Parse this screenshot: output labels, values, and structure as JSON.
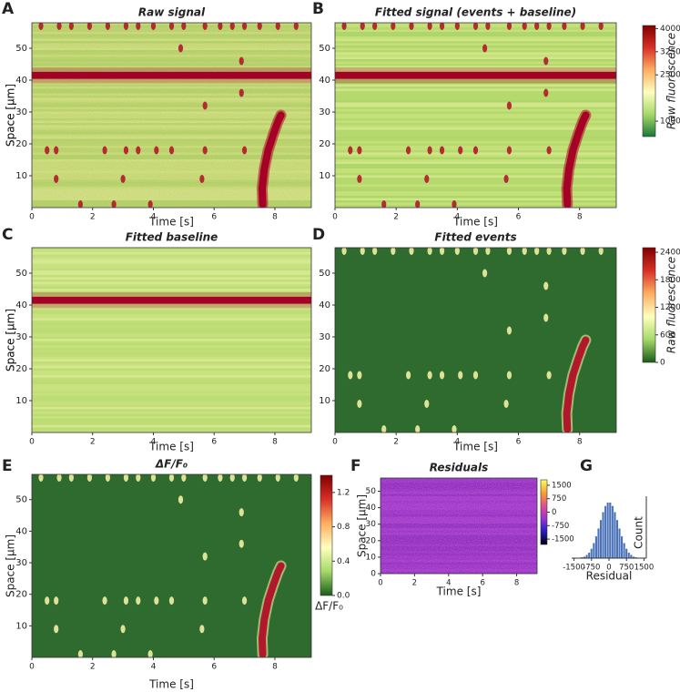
{
  "chart_data": [
    {
      "type": "heatmap",
      "panel": "A",
      "title": "Raw signal",
      "xlabel": "Time [s]",
      "ylabel": "Space [µm]",
      "xlim": [
        0,
        9.2
      ],
      "ylim": [
        0,
        58
      ],
      "xticks": [
        0,
        2,
        4,
        6,
        8
      ],
      "yticks": [
        10,
        20,
        30,
        40,
        50
      ],
      "noise": true,
      "colors": {
        "background": [
          "#b5d96e",
          "#cfe584",
          "#a9d468",
          "#dcec94"
        ],
        "band": "#a50026",
        "event": "#b2182b",
        "wave": "#a50026"
      },
      "band": 41.5,
      "events": [
        [
          0.3,
          57
        ],
        [
          0.9,
          57
        ],
        [
          1.3,
          57
        ],
        [
          1.9,
          57
        ],
        [
          2.5,
          57
        ],
        [
          3.1,
          57
        ],
        [
          3.5,
          57
        ],
        [
          4.0,
          57
        ],
        [
          4.6,
          57
        ],
        [
          5.0,
          57
        ],
        [
          5.7,
          57
        ],
        [
          6.2,
          57
        ],
        [
          6.6,
          57
        ],
        [
          7.0,
          57
        ],
        [
          7.5,
          57
        ],
        [
          8.1,
          57
        ],
        [
          8.7,
          57
        ],
        [
          0.5,
          18
        ],
        [
          0.8,
          18
        ],
        [
          2.4,
          18
        ],
        [
          3.1,
          18
        ],
        [
          3.5,
          18
        ],
        [
          4.1,
          18
        ],
        [
          4.6,
          18
        ],
        [
          5.7,
          18
        ],
        [
          7.0,
          18
        ],
        [
          4.9,
          50
        ],
        [
          6.9,
          46
        ],
        [
          5.7,
          32
        ],
        [
          6.9,
          36
        ],
        [
          0.8,
          9
        ],
        [
          3.0,
          9
        ],
        [
          5.6,
          9
        ],
        [
          1.6,
          1
        ],
        [
          2.7,
          1
        ],
        [
          3.9,
          1
        ]
      ],
      "wave": {
        "x": [
          7.6,
          7.58,
          7.65,
          7.78,
          7.95,
          8.1,
          8.2
        ],
        "y": [
          1,
          6,
          12,
          18,
          23,
          27,
          29
        ]
      }
    },
    {
      "type": "heatmap",
      "panel": "B",
      "title": "Fitted signal (events + baseline)",
      "xlabel": "Time [s]",
      "ylabel": "Space [µm]",
      "xlim": [
        0,
        9.2
      ],
      "ylim": [
        0,
        58
      ],
      "xticks": [
        0,
        2,
        4,
        6,
        8
      ],
      "yticks": [
        10,
        20,
        30,
        40,
        50
      ],
      "noise": false,
      "colors": {
        "background": [
          "#b5d96e",
          "#cfe584",
          "#a9d468",
          "#e6f1a0"
        ],
        "band": "#a50026",
        "event": "#b2182b",
        "wave": "#a50026"
      },
      "band": 41.5,
      "events": [
        [
          0.3,
          57
        ],
        [
          0.9,
          57
        ],
        [
          1.3,
          57
        ],
        [
          1.9,
          57
        ],
        [
          2.5,
          57
        ],
        [
          3.1,
          57
        ],
        [
          3.5,
          57
        ],
        [
          4.0,
          57
        ],
        [
          4.6,
          57
        ],
        [
          5.0,
          57
        ],
        [
          5.7,
          57
        ],
        [
          6.2,
          57
        ],
        [
          6.6,
          57
        ],
        [
          7.0,
          57
        ],
        [
          7.5,
          57
        ],
        [
          8.1,
          57
        ],
        [
          8.7,
          57
        ],
        [
          0.5,
          18
        ],
        [
          0.8,
          18
        ],
        [
          2.4,
          18
        ],
        [
          3.1,
          18
        ],
        [
          3.5,
          18
        ],
        [
          4.1,
          18
        ],
        [
          4.6,
          18
        ],
        [
          5.7,
          18
        ],
        [
          7.0,
          18
        ],
        [
          4.9,
          50
        ],
        [
          6.9,
          46
        ],
        [
          5.7,
          32
        ],
        [
          6.9,
          36
        ],
        [
          0.8,
          9
        ],
        [
          3.0,
          9
        ],
        [
          5.6,
          9
        ],
        [
          1.6,
          1
        ],
        [
          2.7,
          1
        ],
        [
          3.9,
          1
        ]
      ],
      "wave": {
        "x": [
          7.6,
          7.58,
          7.65,
          7.78,
          7.95,
          8.1,
          8.2
        ],
        "y": [
          1,
          6,
          12,
          18,
          23,
          27,
          29
        ]
      },
      "colorbar": {
        "label": "Raw fluorescence",
        "lim": [
          500,
          4100
        ],
        "ticks": [
          1000,
          2500,
          3250,
          4000
        ],
        "colors": [
          "#1a7837",
          "#a6d96a",
          "#ffffbf",
          "#fdae61",
          "#d73027",
          "#7f0000"
        ]
      }
    },
    {
      "type": "heatmap",
      "panel": "C",
      "title": "Fitted baseline",
      "xlabel": "Time [s]",
      "ylabel": "Space [µm]",
      "xlim": [
        0,
        9.2
      ],
      "ylim": [
        0,
        58
      ],
      "xticks": [
        0,
        2,
        4,
        6,
        8
      ],
      "yticks": [
        10,
        20,
        30,
        40,
        50
      ],
      "noise": false,
      "colors": {
        "background": [
          "#bcdc74",
          "#d2e788",
          "#c4e07c",
          "#e9f3a6"
        ],
        "band": "#a50026",
        "event": "#b2182b",
        "wave": "#a50026"
      },
      "band": 41.5
    },
    {
      "type": "heatmap",
      "panel": "D",
      "title": "Fitted events",
      "xlabel": "Time [s]",
      "ylabel": "Space [µm]",
      "xlim": [
        0,
        9.2
      ],
      "ylim": [
        0,
        58
      ],
      "xticks": [
        0,
        2,
        4,
        6,
        8
      ],
      "yticks": [
        10,
        20,
        30,
        40,
        50
      ],
      "noise": false,
      "colors": {
        "background": [
          "#2f6b2f"
        ],
        "event": "#f2efa3",
        "wave": "#b2182b"
      },
      "events": [
        [
          0.3,
          57
        ],
        [
          0.9,
          57
        ],
        [
          1.3,
          57
        ],
        [
          1.9,
          57
        ],
        [
          2.5,
          57
        ],
        [
          3.1,
          57
        ],
        [
          3.5,
          57
        ],
        [
          4.0,
          57
        ],
        [
          4.6,
          57
        ],
        [
          5.0,
          57
        ],
        [
          5.7,
          57
        ],
        [
          6.2,
          57
        ],
        [
          6.6,
          57
        ],
        [
          7.0,
          57
        ],
        [
          7.5,
          57
        ],
        [
          8.1,
          57
        ],
        [
          8.7,
          57
        ],
        [
          0.5,
          18
        ],
        [
          0.8,
          18
        ],
        [
          2.4,
          18
        ],
        [
          3.1,
          18
        ],
        [
          3.5,
          18
        ],
        [
          4.1,
          18
        ],
        [
          4.6,
          18
        ],
        [
          5.7,
          18
        ],
        [
          7.0,
          18
        ],
        [
          4.9,
          50
        ],
        [
          6.9,
          46
        ],
        [
          5.7,
          32
        ],
        [
          6.9,
          36
        ],
        [
          0.8,
          9
        ],
        [
          3.0,
          9
        ],
        [
          5.6,
          9
        ],
        [
          1.6,
          1
        ],
        [
          2.7,
          1
        ],
        [
          3.9,
          1
        ]
      ],
      "wave": {
        "x": [
          7.6,
          7.58,
          7.65,
          7.78,
          7.95,
          8.1,
          8.2
        ],
        "y": [
          1,
          6,
          12,
          18,
          23,
          27,
          29
        ]
      },
      "colorbar": {
        "label": "Raw fluorescence",
        "lim": [
          0,
          2500
        ],
        "ticks": [
          0,
          600,
          1200,
          1800,
          2400
        ],
        "colors": [
          "#1a5c1a",
          "#a6d96a",
          "#ffffbf",
          "#fdae61",
          "#d73027",
          "#7f0000"
        ]
      }
    },
    {
      "type": "heatmap",
      "panel": "E",
      "title": "ΔF/F₀",
      "xlabel": "Time [s]",
      "ylabel": "Space [µm]",
      "xlim": [
        0,
        9.2
      ],
      "ylim": [
        0,
        58
      ],
      "xticks": [
        0,
        2,
        4,
        6,
        8
      ],
      "yticks": [
        10,
        20,
        30,
        40,
        50
      ],
      "noise": false,
      "colors": {
        "background": [
          "#2f6b2f"
        ],
        "event": "#f2efa3",
        "wave": "#b2182b"
      },
      "events": [
        [
          0.3,
          57
        ],
        [
          0.9,
          57
        ],
        [
          1.3,
          57
        ],
        [
          1.9,
          57
        ],
        [
          2.5,
          57
        ],
        [
          3.1,
          57
        ],
        [
          3.5,
          57
        ],
        [
          4.0,
          57
        ],
        [
          4.6,
          57
        ],
        [
          5.0,
          57
        ],
        [
          5.7,
          57
        ],
        [
          6.2,
          57
        ],
        [
          6.6,
          57
        ],
        [
          7.0,
          57
        ],
        [
          7.5,
          57
        ],
        [
          8.1,
          57
        ],
        [
          8.7,
          57
        ],
        [
          0.5,
          18
        ],
        [
          0.8,
          18
        ],
        [
          2.4,
          18
        ],
        [
          3.1,
          18
        ],
        [
          3.5,
          18
        ],
        [
          4.1,
          18
        ],
        [
          4.6,
          18
        ],
        [
          5.7,
          18
        ],
        [
          7.0,
          18
        ],
        [
          4.9,
          50
        ],
        [
          6.9,
          46
        ],
        [
          5.7,
          32
        ],
        [
          6.9,
          36
        ],
        [
          0.8,
          9
        ],
        [
          3.0,
          9
        ],
        [
          5.6,
          9
        ],
        [
          1.6,
          1
        ],
        [
          2.7,
          1
        ],
        [
          3.9,
          1
        ]
      ],
      "wave": {
        "x": [
          7.6,
          7.58,
          7.65,
          7.78,
          7.95,
          8.1,
          8.2
        ],
        "y": [
          1,
          6,
          12,
          18,
          23,
          27,
          29
        ]
      },
      "colorbar": {
        "label": "ΔF/F₀",
        "lim": [
          0,
          1.4
        ],
        "ticks": [
          {
            "value": 0,
            "label": "0.0"
          },
          0.4,
          0.8,
          1.2
        ],
        "colors": [
          "#1a5c1a",
          "#a6d96a",
          "#ffffbf",
          "#fdae61",
          "#d73027",
          "#7f0000"
        ]
      }
    },
    {
      "type": "heatmap",
      "panel": "F",
      "title": "Residuals",
      "xlabel": "Time [s]",
      "ylabel": "Space [µm]",
      "xlim": [
        0,
        9.2
      ],
      "ylim": [
        0,
        58
      ],
      "xticks": [
        0,
        2,
        4,
        6,
        8
      ],
      "yticks": [
        0,
        10,
        20,
        30,
        40,
        50
      ],
      "noise": true,
      "colors": {
        "background": [
          "#9a35d2",
          "#8a2cc4",
          "#a63fd8"
        ]
      },
      "colorbar": {
        "lim": [
          -1800,
          1800
        ],
        "ticks": [
          -1500,
          -750,
          0,
          750,
          1500
        ],
        "colors": [
          "#000000",
          "#2020c0",
          "#9a35d2",
          "#e0508a",
          "#f5a030",
          "#ffff60"
        ]
      }
    },
    {
      "type": "histogram",
      "panel": "G",
      "xlabel": "Residual",
      "ylabel": "Count",
      "color": "#4a72b8",
      "xlim": [
        -1600,
        1600
      ],
      "ylim": [
        0,
        110
      ],
      "xticks": [
        -1500,
        -750,
        0,
        750,
        1500
      ],
      "bins": [
        -1500,
        -1400,
        -1300,
        -1200,
        -1100,
        -1000,
        -900,
        -800,
        -700,
        -600,
        -500,
        -400,
        -300,
        -200,
        -100,
        0,
        100,
        200,
        300,
        400,
        500,
        600,
        700,
        800,
        900,
        1000,
        1100,
        1200,
        1300,
        1400,
        1500
      ],
      "counts": [
        0,
        0,
        1,
        2,
        3,
        6,
        10,
        17,
        27,
        39,
        53,
        68,
        82,
        93,
        99,
        99,
        93,
        82,
        68,
        53,
        39,
        27,
        17,
        10,
        6,
        3,
        2,
        1,
        0,
        0
      ]
    }
  ]
}
